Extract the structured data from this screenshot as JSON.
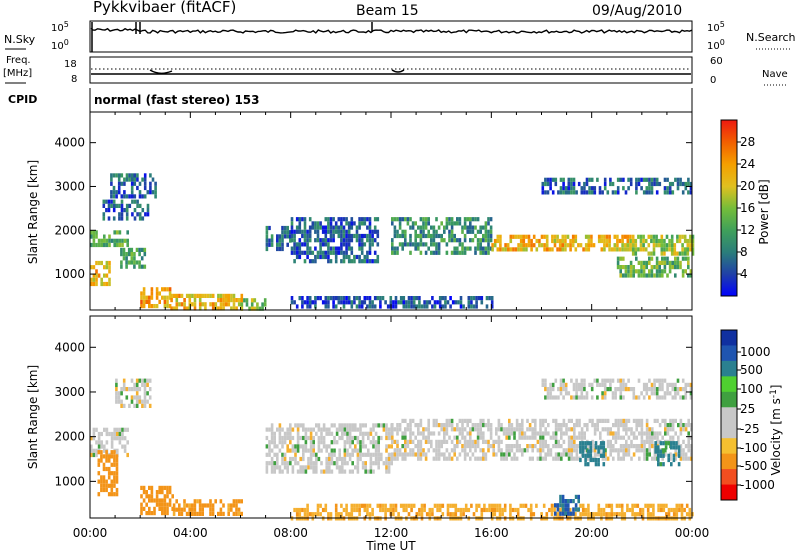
{
  "header": {
    "station": "Pykkvibaer (fitACF)",
    "beam": "Beam 15",
    "date": "09/Aug/2010"
  },
  "noise_panel": {
    "left_label": "N.Sky",
    "right_label": "N.Search",
    "left_ticks": [
      "10^5",
      "10^0"
    ],
    "right_ticks": [
      "10^5",
      "10^0"
    ]
  },
  "freq_panel": {
    "left_label_1": "Freq.",
    "left_label_2": "[MHz]",
    "right_label": "Nave",
    "left_ticks": [
      "18",
      "8"
    ],
    "right_ticks": [
      "60",
      "0"
    ]
  },
  "cpid_panel": {
    "left_label": "CPID",
    "text": "normal (fast stereo) 153"
  },
  "x_axis": {
    "ticks": [
      "00:00",
      "04:00",
      "08:00",
      "12:00",
      "16:00",
      "20:00",
      "00:00"
    ],
    "title": "Time UT"
  },
  "colors": {
    "power": [
      "#0000ff",
      "#1f3fa8",
      "#2a7d7b",
      "#3fa05a",
      "#74bd3a",
      "#e0c020",
      "#f5a000",
      "#f26000",
      "#ee1b10"
    ],
    "velocity": [
      "#ee0000",
      "#f24e20",
      "#f39418",
      "#f5c030",
      "#c8c8c8",
      "#c8c8c8",
      "#3fa040",
      "#4fd030",
      "#2a8090",
      "#1f55b0",
      "#1030a0"
    ]
  },
  "chart_data": [
    {
      "type": "heatmap",
      "title": "Power",
      "xlabel": "Time UT",
      "ylabel": "Slant Range [km]",
      "xlim": [
        0,
        24
      ],
      "ylim": [
        180,
        4700
      ],
      "yticks": [
        "1000",
        "2000",
        "3000",
        "4000"
      ],
      "colorbar": {
        "label": "Power [dB]",
        "ticks": [
          "4",
          "8",
          "12",
          "16",
          "20",
          "24",
          "28"
        ],
        "range": [
          0,
          32
        ]
      },
      "regions": [
        {
          "t": [
            0.0,
            0.8
          ],
          "r": [
            800,
            1300
          ],
          "level": 22
        },
        {
          "t": [
            0.0,
            1.5
          ],
          "r": [
            1650,
            2000
          ],
          "level": 13
        },
        {
          "t": [
            0.5,
            2.3
          ],
          "r": [
            2300,
            2700
          ],
          "level": 6
        },
        {
          "t": [
            0.8,
            2.6
          ],
          "r": [
            2800,
            3300
          ],
          "level": 6
        },
        {
          "t": [
            1.2,
            2.2
          ],
          "r": [
            1200,
            1600
          ],
          "level": 12
        },
        {
          "t": [
            2.0,
            3.2
          ],
          "r": [
            250,
            700
          ],
          "level": 24
        },
        {
          "t": [
            3.2,
            6.0
          ],
          "r": [
            250,
            550
          ],
          "level": 22
        },
        {
          "t": [
            6.0,
            7.0
          ],
          "r": [
            250,
            450
          ],
          "level": 16
        },
        {
          "t": [
            7.0,
            8.0
          ],
          "r": [
            1600,
            2100
          ],
          "level": 7
        },
        {
          "t": [
            8.0,
            11.5
          ],
          "r": [
            1300,
            2300
          ],
          "level": 6
        },
        {
          "t": [
            8.0,
            16.0
          ],
          "r": [
            220,
            500
          ],
          "level": 5
        },
        {
          "t": [
            12.0,
            16.0
          ],
          "r": [
            1500,
            2300
          ],
          "level": 10
        },
        {
          "t": [
            16.0,
            21.5
          ],
          "r": [
            1600,
            1900
          ],
          "level": 22
        },
        {
          "t": [
            21.5,
            24.0
          ],
          "r": [
            1500,
            1900
          ],
          "level": 17
        },
        {
          "t": [
            18.0,
            24.0
          ],
          "r": [
            2900,
            3200
          ],
          "level": 6
        },
        {
          "t": [
            21.0,
            24.0
          ],
          "r": [
            1000,
            1400
          ],
          "level": 14
        }
      ]
    },
    {
      "type": "heatmap",
      "title": "Velocity",
      "xlabel": "Time UT",
      "ylabel": "Slant Range [km]",
      "xlim": [
        0,
        24
      ],
      "ylim": [
        180,
        4700
      ],
      "yticks": [
        "1000",
        "2000",
        "3000",
        "4000"
      ],
      "colorbar": {
        "label": "Velocity [m s^-1]",
        "ticks": [
          "1000",
          "500",
          "100",
          "25",
          "-25",
          "-100",
          "-500",
          "-1000"
        ]
      },
      "regions": [
        {
          "t": [
            0.0,
            1.5
          ],
          "r": [
            1600,
            2200
          ],
          "v": 0
        },
        {
          "t": [
            0.3,
            1.1
          ],
          "r": [
            700,
            1700
          ],
          "v": -300
        },
        {
          "t": [
            1.0,
            2.4
          ],
          "r": [
            2700,
            3300
          ],
          "v": 0
        },
        {
          "t": [
            2.0,
            3.3
          ],
          "r": [
            250,
            900
          ],
          "v": -250
        },
        {
          "t": [
            3.3,
            6.0
          ],
          "r": [
            250,
            600
          ],
          "v": -150
        },
        {
          "t": [
            7.0,
            12.0
          ],
          "r": [
            1200,
            2300
          ],
          "v": 0
        },
        {
          "t": [
            8.0,
            24.0
          ],
          "r": [
            200,
            500
          ],
          "v": -80
        },
        {
          "t": [
            12.0,
            24.0
          ],
          "r": [
            1500,
            2400
          ],
          "v": 0
        },
        {
          "t": [
            18.0,
            24.0
          ],
          "r": [
            2900,
            3300
          ],
          "v": 0
        },
        {
          "t": [
            19.5,
            20.5
          ],
          "r": [
            1400,
            1900
          ],
          "v": 200
        },
        {
          "t": [
            22.5,
            23.5
          ],
          "r": [
            1400,
            1900
          ],
          "v": 150
        },
        {
          "t": [
            18.5,
            19.5
          ],
          "r": [
            250,
            700
          ],
          "v": 600
        }
      ]
    }
  ]
}
